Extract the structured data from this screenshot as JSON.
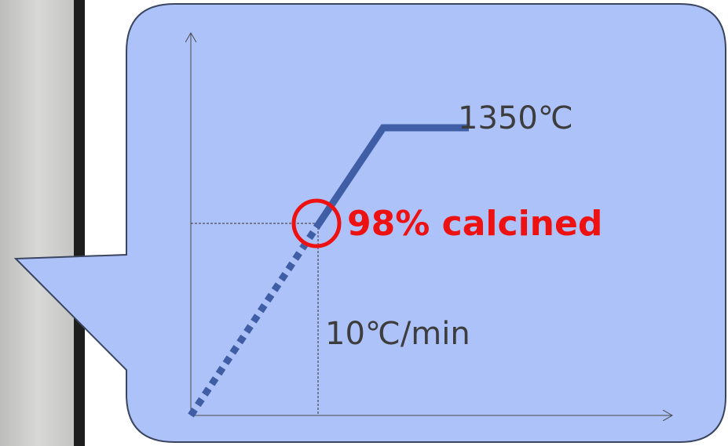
{
  "labels": {
    "temperature": "1350℃",
    "calcined": "98% calcined",
    "rate": "10℃/min"
  }
}
